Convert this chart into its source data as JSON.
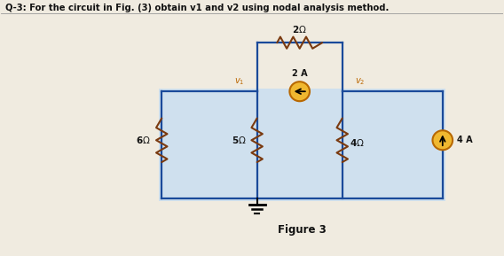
{
  "title": "Q-3: For the circuit in Fig. (3) obtain v1 and v2 using nodal analysis method.",
  "figure_label": "Figure 3",
  "bg_color": "#f0ebe0",
  "circuit_bg": "#cfe0ee",
  "wire_color": "#1a4a9a",
  "resistor_color": "#7a3a10",
  "cs_fill": "#f0b830",
  "cs_edge": "#b86800",
  "node_color": "#bb6600",
  "text_color": "#111111",
  "lw": 1.6,
  "cs_r": 0.2
}
